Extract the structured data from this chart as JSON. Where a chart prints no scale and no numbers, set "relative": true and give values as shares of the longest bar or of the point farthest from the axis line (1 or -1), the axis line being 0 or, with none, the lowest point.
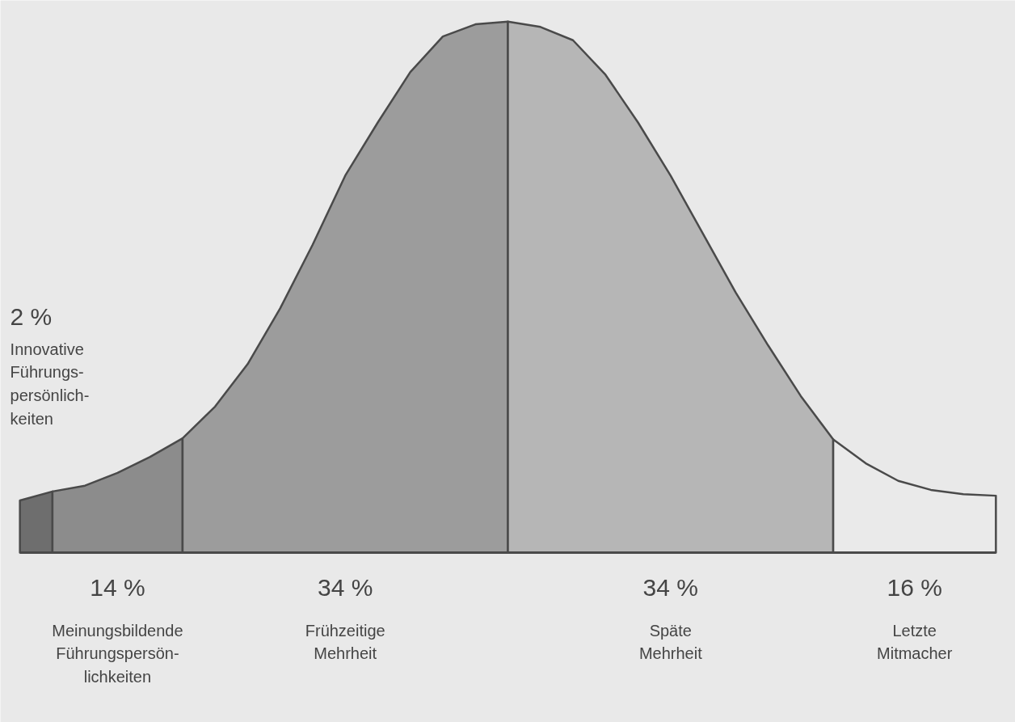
{
  "chart_data": {
    "type": "area",
    "relative": true,
    "categories": [
      null,
      null,
      null,
      null,
      null,
      null,
      null,
      null,
      null,
      null,
      null,
      null,
      null,
      null,
      null,
      null,
      null,
      null,
      null,
      null,
      null,
      null,
      null,
      null,
      null,
      null,
      null,
      null,
      null,
      null,
      null
    ],
    "series": [
      {
        "color": "#6e6e6e",
        "values": [
          0.098,
          0.115,
          null,
          null,
          null,
          null,
          null,
          null,
          null,
          null,
          null,
          null,
          null,
          null,
          null,
          null,
          null,
          null,
          null,
          null,
          null,
          null,
          null,
          null,
          null,
          null,
          null,
          null,
          null,
          null,
          null
        ]
      },
      {
        "color": "#8c8c8c",
        "values": [
          null,
          0.115,
          0.126,
          0.15,
          0.18,
          0.215,
          null,
          null,
          null,
          null,
          null,
          null,
          null,
          null,
          null,
          null,
          null,
          null,
          null,
          null,
          null,
          null,
          null,
          null,
          null,
          null,
          null,
          null,
          null,
          null,
          null
        ]
      },
      {
        "color": "#9c9c9c",
        "values": [
          null,
          null,
          null,
          null,
          null,
          0.215,
          0.275,
          0.355,
          0.46,
          0.58,
          0.71,
          0.81,
          0.905,
          0.972,
          0.995,
          1.0,
          null,
          null,
          null,
          null,
          null,
          null,
          null,
          null,
          null,
          null,
          null,
          null,
          null,
          null,
          null
        ]
      },
      {
        "color": "#b6b6b6",
        "values": [
          null,
          null,
          null,
          null,
          null,
          null,
          null,
          null,
          null,
          null,
          null,
          null,
          null,
          null,
          null,
          1.0,
          0.99,
          0.965,
          0.9,
          0.81,
          0.71,
          0.6,
          0.49,
          0.39,
          0.295,
          0.213,
          null,
          null,
          null,
          null,
          null
        ]
      },
      {
        "color": "#eaeaea",
        "values": [
          null,
          null,
          null,
          null,
          null,
          null,
          null,
          null,
          null,
          null,
          null,
          null,
          null,
          null,
          null,
          null,
          null,
          null,
          null,
          null,
          null,
          null,
          null,
          null,
          null,
          0.213,
          0.168,
          0.135,
          0.118,
          0.11,
          0.107
        ]
      }
    ],
    "annotations": [
      "2 %\nInnovative\nFührungs-\npersönlich-\nkeiten",
      "14 %\nMeinungsbildende\nFührungspersön-\nlichkeiten",
      "34 %\nFrühzeitige\nMehrheit",
      "34 %\nSpäte\nMehrheit",
      "16 %\nLetzte\nMitmacher"
    ]
  }
}
